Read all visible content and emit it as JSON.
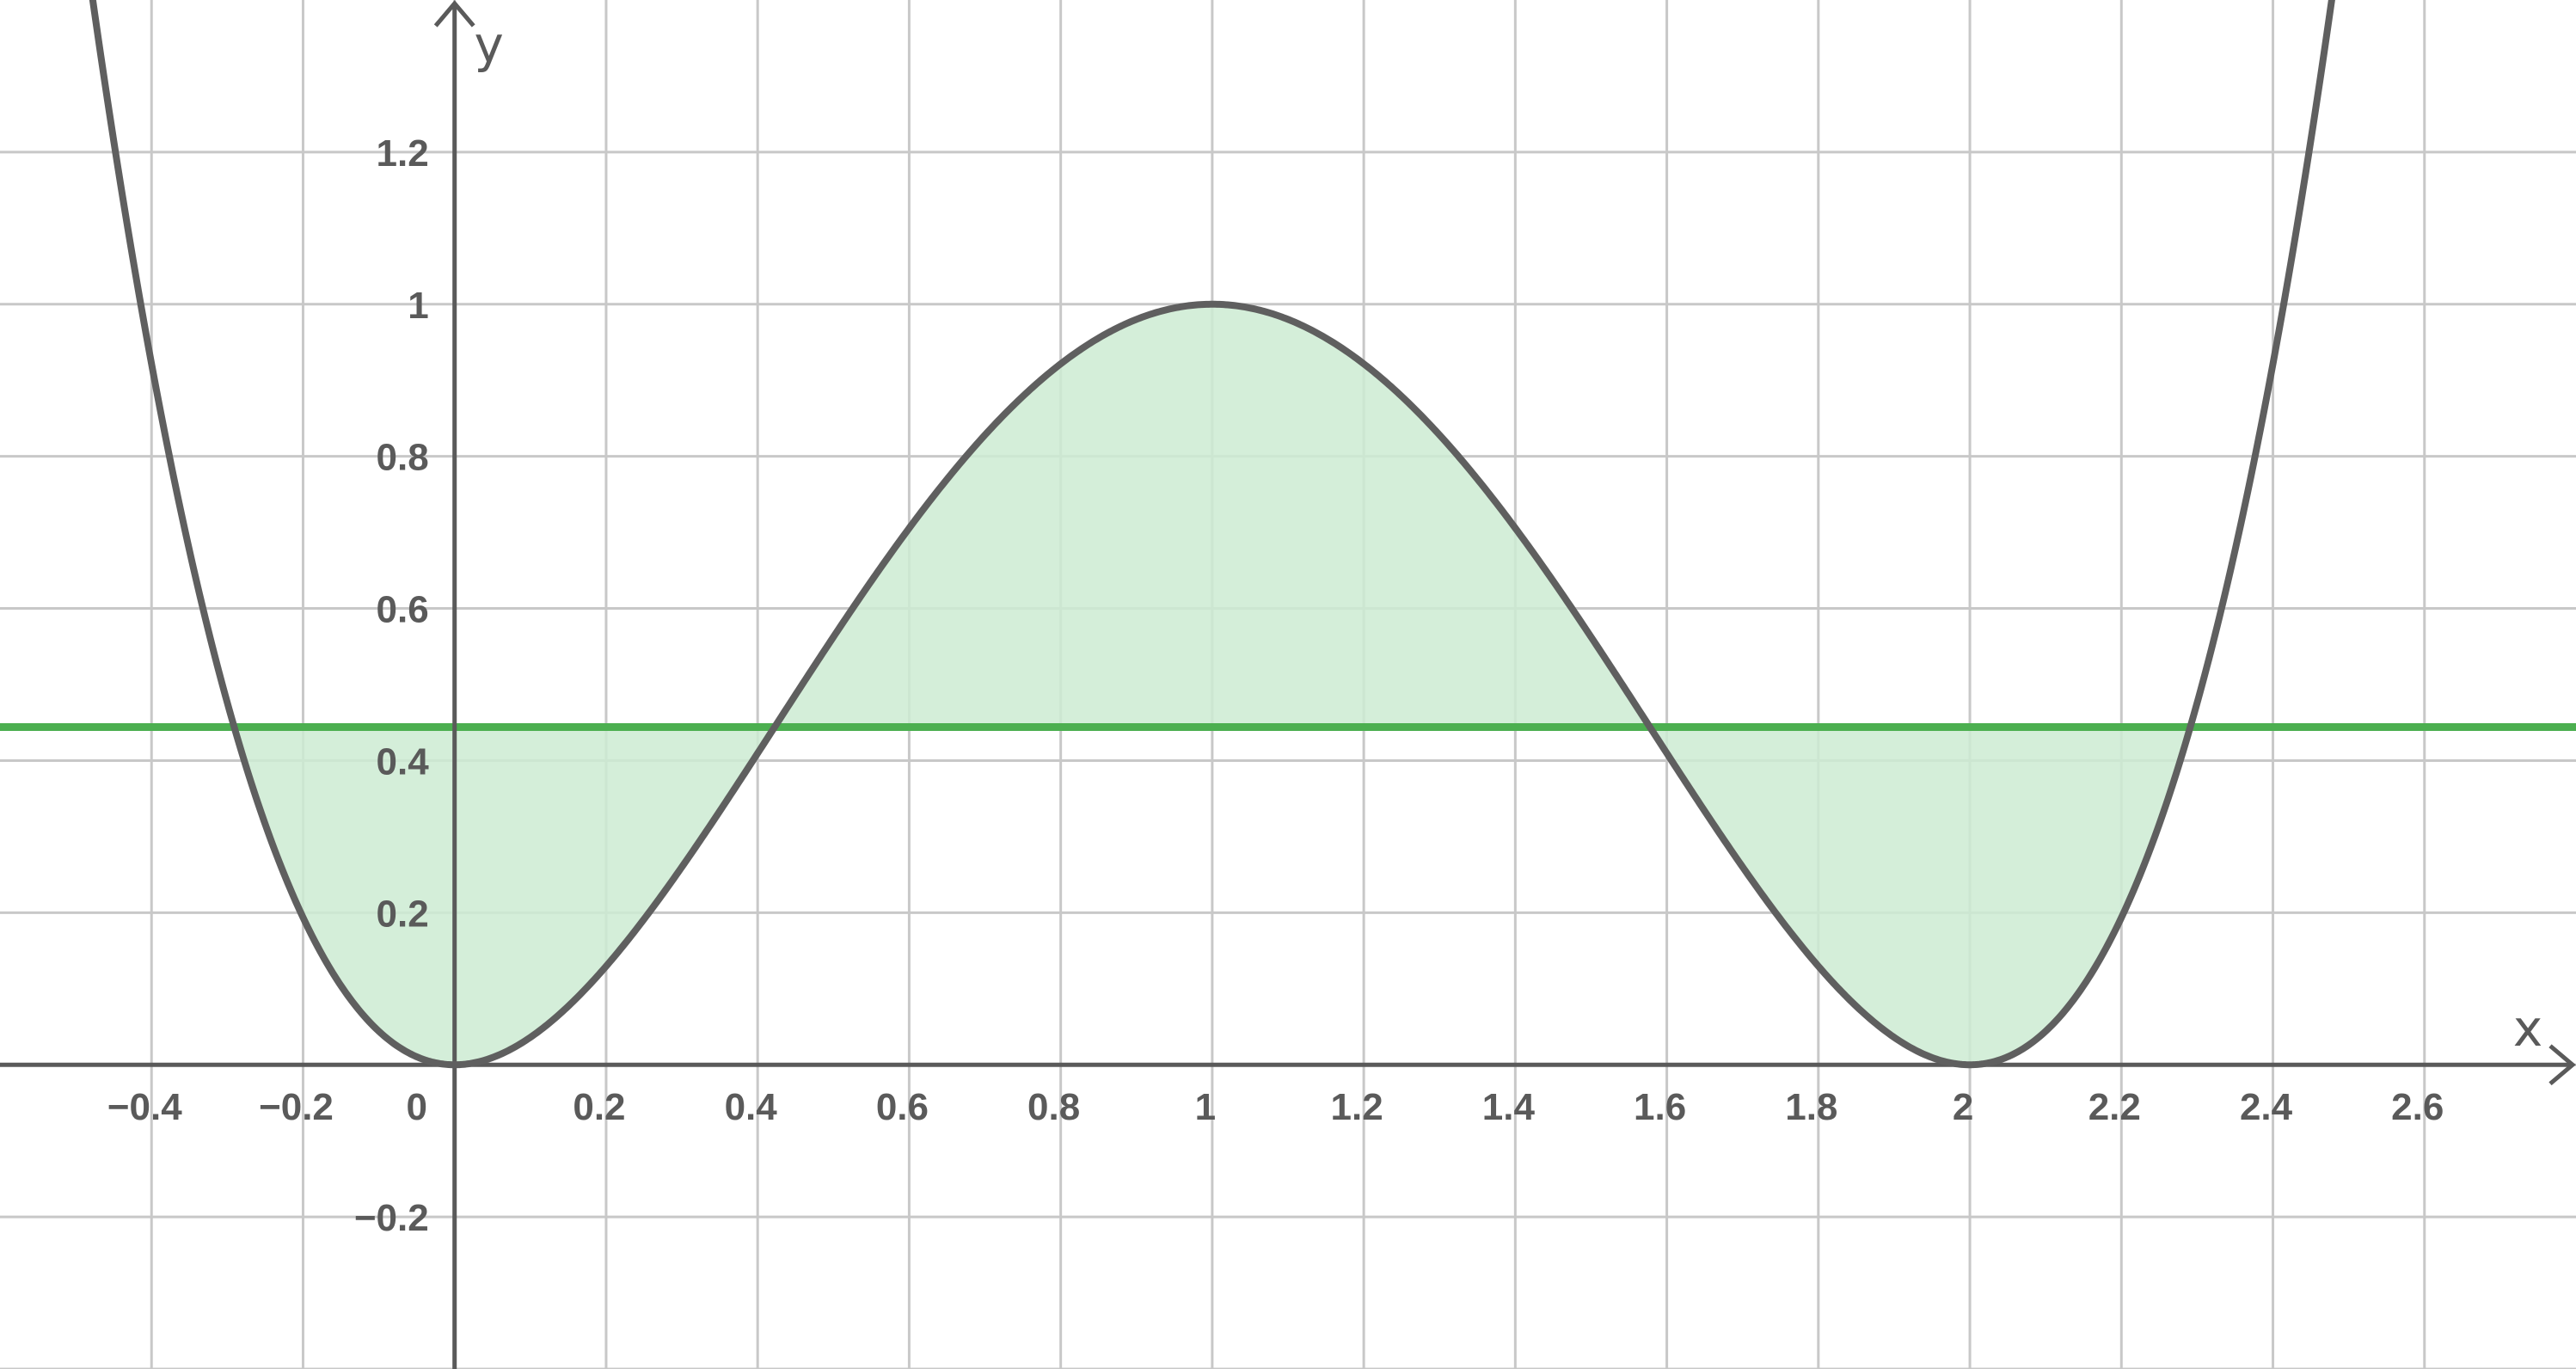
{
  "chart_data": {
    "type": "line",
    "title": "",
    "xlabel": "x",
    "ylabel": "y",
    "xlim": [
      -0.6,
      2.8
    ],
    "ylim": [
      -0.4,
      1.4
    ],
    "grid": true,
    "function": "y = (x*(x-2))^2",
    "x_ticks": [
      -0.4,
      -0.2,
      0,
      0.2,
      0.4,
      0.6,
      0.8,
      1,
      1.2,
      1.4,
      1.6,
      1.8,
      2,
      2.2,
      2.4,
      2.6
    ],
    "x_tick_labels": [
      "−0.4",
      "−0.2",
      "0",
      "0.2",
      "0.4",
      "0.6",
      "0.8",
      "1",
      "1.2",
      "1.4",
      "1.6",
      "1.8",
      "2",
      "2.2",
      "2.4",
      "2.6"
    ],
    "y_ticks": [
      -0.2,
      0.2,
      0.4,
      0.6,
      0.8,
      1,
      1.2
    ],
    "y_tick_labels": [
      "−0.2",
      "0.2",
      "0.4",
      "0.6",
      "0.8",
      "1",
      "1.2"
    ],
    "horizontal_line": {
      "y": 0.444,
      "color": "#4caf50"
    },
    "shaded_region": {
      "between": [
        "curve",
        "horizontal_line"
      ],
      "x_range": [
        -0.291,
        2.291
      ],
      "color": "#cdebd2"
    },
    "series": [
      {
        "x": [
          -0.5,
          -0.4,
          -0.3,
          -0.2,
          -0.1,
          0,
          0.1,
          0.2,
          0.3,
          0.4,
          0.5,
          0.6,
          0.7,
          0.8,
          0.9,
          1,
          1.1,
          1.2,
          1.3,
          1.4,
          1.5,
          1.6,
          1.7,
          1.8,
          1.9,
          2,
          2.1,
          2.2,
          2.3,
          2.4,
          2.5
        ],
        "y": [
          1.5625,
          0.9216,
          0.4761,
          0.1936,
          0.0441,
          0,
          0.0361,
          0.1296,
          0.2601,
          0.4096,
          0.5625,
          0.7056,
          0.8281,
          0.9216,
          0.9801,
          1,
          0.9801,
          0.9216,
          0.8281,
          0.7056,
          0.5625,
          0.4096,
          0.2601,
          0.1296,
          0.0361,
          0,
          0.0441,
          0.1936,
          0.4761,
          0.9216,
          1.5625
        ],
        "color": "#5f5f5f"
      }
    ],
    "colors": {
      "curve": "#5f5f5f",
      "axis": "#5a5a5a",
      "grid": "#c8c8c8",
      "fill": "#cdebd2",
      "line": "#4caf50"
    }
  }
}
